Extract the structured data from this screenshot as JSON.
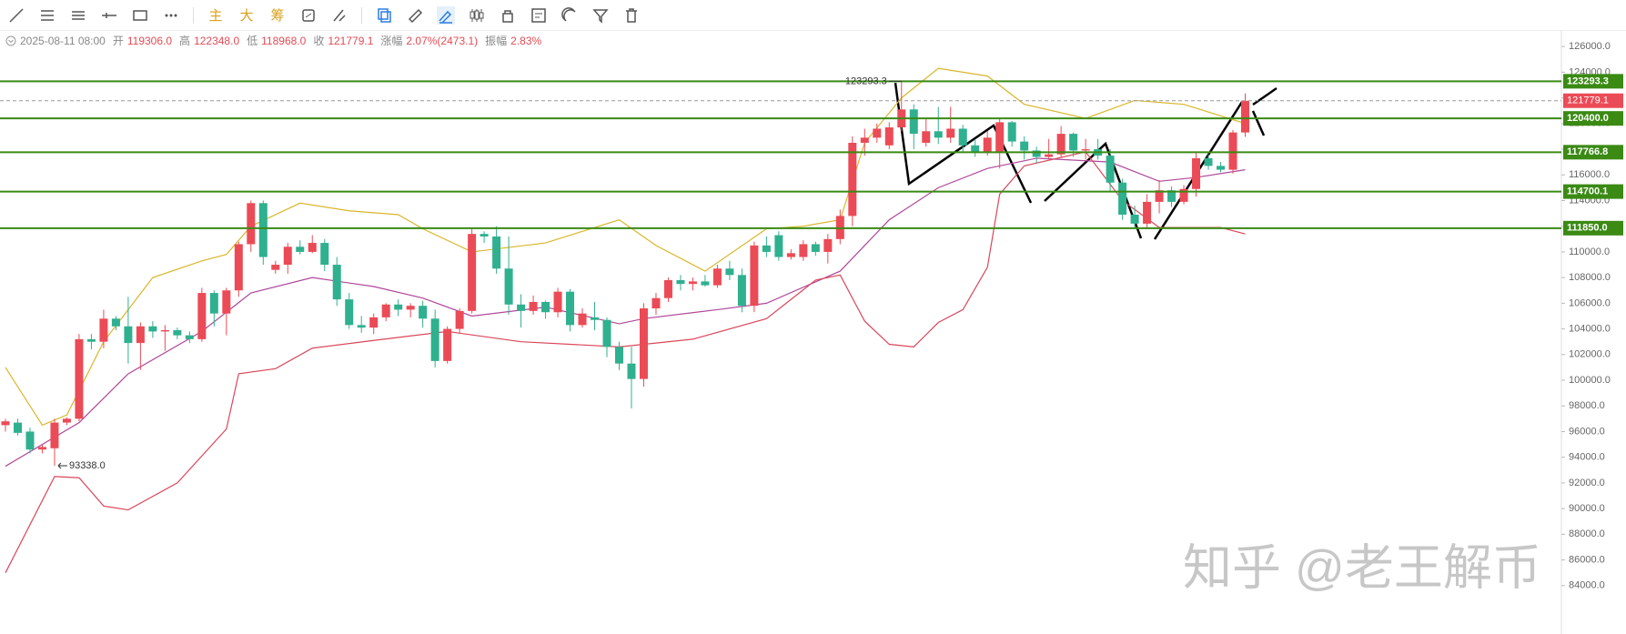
{
  "toolbar": {
    "buttons": [
      "主",
      "大",
      "筹"
    ]
  },
  "chart_data": {
    "type": "candlestick",
    "header": {
      "date": "2025-08-11 08:00",
      "items": [
        {
          "label": "开",
          "text": "119306.0"
        },
        {
          "label": "高",
          "text": "122348.0"
        },
        {
          "label": "低",
          "text": "118968.0"
        },
        {
          "label": "收",
          "text": "121779.1"
        },
        {
          "label": "涨幅",
          "text": "2.07%(2473.1)"
        },
        {
          "label": "振幅",
          "text": "2.83%"
        }
      ]
    },
    "up_color": "#eb4b56",
    "down_color": "#2fb08f",
    "ylim": [
      82000,
      127500
    ],
    "yticks": [
      {
        "value": 84000,
        "label": "84000.0"
      },
      {
        "value": 86000,
        "label": "86000.0"
      },
      {
        "value": 88000,
        "label": "88000.0"
      },
      {
        "value": 90000,
        "label": "90000.0"
      },
      {
        "value": 92000,
        "label": "92000.0"
      },
      {
        "value": 94000,
        "label": "94000.0"
      },
      {
        "value": 96000,
        "label": "96000.0"
      },
      {
        "value": 98000,
        "label": "98000.0"
      },
      {
        "value": 100000,
        "label": "100000.0"
      },
      {
        "value": 102000,
        "label": "102000.0"
      },
      {
        "value": 104000,
        "label": "104000.0"
      },
      {
        "value": 106000,
        "label": "106000.0"
      },
      {
        "value": 108000,
        "label": "108000.0"
      },
      {
        "value": 110000,
        "label": "110000.0"
      },
      {
        "value": 112000,
        "label": "112000.0"
      },
      {
        "value": 114000,
        "label": "114000.0"
      },
      {
        "value": 116000,
        "label": "116000.0"
      },
      {
        "value": 118000,
        "label": "118000.0"
      },
      {
        "value": 120000,
        "label": "120000.0"
      },
      {
        "value": 122000,
        "label": "122000.0"
      },
      {
        "value": 124000,
        "label": "124000.0"
      },
      {
        "value": 126000,
        "label": "126000.0"
      }
    ],
    "ohlc": [
      [
        96500,
        97000,
        96000,
        96800
      ],
      [
        96700,
        97000,
        95700,
        95900
      ],
      [
        96000,
        96300,
        94300,
        94600
      ],
      [
        94600,
        95000,
        94300,
        94800
      ],
      [
        94700,
        97000,
        93338,
        96700
      ],
      [
        96700,
        97100,
        96500,
        97000
      ],
      [
        97000,
        103600,
        96800,
        103200
      ],
      [
        103200,
        103600,
        102400,
        103000
      ],
      [
        103000,
        105500,
        102500,
        104800
      ],
      [
        104800,
        105000,
        103900,
        104200
      ],
      [
        104200,
        106500,
        101300,
        102900
      ],
      [
        102900,
        104500,
        100800,
        104200
      ],
      [
        104200,
        104600,
        103300,
        103800
      ],
      [
        103800,
        104300,
        102300,
        103900
      ],
      [
        103900,
        104100,
        103200,
        103500
      ],
      [
        103500,
        103800,
        102900,
        103200
      ],
      [
        103200,
        107200,
        103000,
        106800
      ],
      [
        106800,
        107000,
        104200,
        105200
      ],
      [
        105200,
        107200,
        103500,
        107000
      ],
      [
        107000,
        110800,
        106500,
        110600
      ],
      [
        110600,
        114000,
        110000,
        113800
      ],
      [
        113800,
        114000,
        109000,
        109600
      ],
      [
        108600,
        109300,
        108300,
        109000
      ],
      [
        109000,
        110700,
        108300,
        110400
      ],
      [
        110400,
        110900,
        109800,
        110000
      ],
      [
        110000,
        111300,
        109900,
        110700
      ],
      [
        110700,
        111000,
        108500,
        109000
      ],
      [
        109000,
        109600,
        105800,
        106300
      ],
      [
        106300,
        106800,
        104000,
        104300
      ],
      [
        104300,
        105000,
        103700,
        104100
      ],
      [
        104100,
        105200,
        103600,
        104900
      ],
      [
        104900,
        106000,
        104600,
        105900
      ],
      [
        105900,
        106300,
        105000,
        105500
      ],
      [
        105500,
        106000,
        104900,
        105800
      ],
      [
        105800,
        106200,
        104100,
        104800
      ],
      [
        104800,
        105500,
        101000,
        101500
      ],
      [
        101500,
        104200,
        101300,
        104000
      ],
      [
        104000,
        105600,
        103700,
        105400
      ],
      [
        105400,
        111800,
        105200,
        111400
      ],
      [
        111400,
        111600,
        110700,
        111200
      ],
      [
        111200,
        112000,
        108300,
        108700
      ],
      [
        108700,
        111200,
        105100,
        105900
      ],
      [
        105900,
        106700,
        104100,
        105400
      ],
      [
        105400,
        106600,
        105100,
        106100
      ],
      [
        106100,
        106200,
        104800,
        105300
      ],
      [
        105300,
        107200,
        104900,
        106900
      ],
      [
        106900,
        107100,
        103800,
        104300
      ],
      [
        104300,
        105600,
        104100,
        105200
      ],
      [
        104900,
        106100,
        103900,
        104700
      ],
      [
        104700,
        104900,
        101800,
        102600
      ],
      [
        102600,
        103000,
        100800,
        101300
      ],
      [
        101300,
        102600,
        97800,
        100100
      ],
      [
        100100,
        106000,
        99500,
        105600
      ],
      [
        105600,
        106800,
        105100,
        106400
      ],
      [
        106400,
        108000,
        106100,
        107800
      ],
      [
        107800,
        108200,
        107000,
        107500
      ],
      [
        107500,
        108000,
        107000,
        107700
      ],
      [
        107700,
        108200,
        107300,
        107400
      ],
      [
        107400,
        109000,
        107200,
        108700
      ],
      [
        108700,
        109300,
        107800,
        108200
      ],
      [
        108200,
        108700,
        105300,
        105800
      ],
      [
        105800,
        110800,
        105300,
        110500
      ],
      [
        110500,
        111200,
        109600,
        110000
      ],
      [
        111300,
        111600,
        109300,
        109600
      ],
      [
        109600,
        110200,
        109400,
        109900
      ],
      [
        109600,
        110900,
        109300,
        110600
      ],
      [
        110600,
        110800,
        109700,
        110000
      ],
      [
        110000,
        111400,
        109100,
        111000
      ],
      [
        111000,
        113300,
        110600,
        112800
      ],
      [
        112800,
        119000,
        112000,
        118500
      ],
      [
        118500,
        119600,
        117500,
        118900
      ],
      [
        118900,
        120000,
        118500,
        119600
      ],
      [
        118300,
        120100,
        118000,
        119700
      ],
      [
        119700,
        123293.3,
        119400,
        121100
      ],
      [
        121100,
        121500,
        118000,
        119200
      ],
      [
        118500,
        120400,
        118200,
        119400
      ],
      [
        119400,
        121300,
        118400,
        118900
      ],
      [
        118900,
        121300,
        118500,
        119600
      ],
      [
        119600,
        119900,
        117800,
        118300
      ],
      [
        118300,
        118800,
        117400,
        117800
      ],
      [
        117800,
        119400,
        117500,
        118900
      ],
      [
        117700,
        120400,
        116500,
        120100
      ],
      [
        120100,
        120200,
        118200,
        118600
      ],
      [
        118600,
        119000,
        117200,
        117900
      ],
      [
        117900,
        118200,
        116900,
        117400
      ],
      [
        117400,
        118800,
        117300,
        117600
      ],
      [
        117600,
        119800,
        117400,
        119200
      ],
      [
        119200,
        119300,
        117400,
        117900
      ],
      [
        117900,
        118800,
        117200,
        118000
      ],
      [
        118000,
        118800,
        117200,
        117500
      ],
      [
        117500,
        118000,
        114700,
        115400
      ],
      [
        115400,
        115700,
        112500,
        112900
      ],
      [
        112900,
        113600,
        111850,
        112200
      ],
      [
        112200,
        114500,
        111900,
        113900
      ],
      [
        113900,
        115600,
        113000,
        114800
      ],
      [
        114800,
        115100,
        113500,
        113900
      ],
      [
        113900,
        115200,
        113700,
        114900
      ],
      [
        114900,
        117700,
        114300,
        117300
      ],
      [
        117300,
        117600,
        116400,
        116700
      ],
      [
        116700,
        117000,
        116200,
        116400
      ],
      [
        116400,
        119500,
        116100,
        119306
      ],
      [
        119306,
        122348,
        118968,
        121779.1
      ]
    ],
    "overlays": [
      {
        "color": "#d9b62b",
        "x": [
          0,
          3,
          5,
          8,
          12,
          16,
          18,
          20,
          24,
          28,
          32,
          34,
          38,
          44,
          50,
          53,
          57,
          62,
          65,
          68,
          70,
          73,
          76,
          80,
          83,
          88,
          92,
          96,
          101
        ],
        "values": [
          101000,
          96500,
          97300,
          103000,
          108000,
          109300,
          109800,
          112000,
          113800,
          113200,
          112900,
          111800,
          110000,
          110700,
          112500,
          110500,
          108500,
          111800,
          112000,
          112500,
          118500,
          122000,
          124300,
          123700,
          121500,
          120400,
          121800,
          121500,
          120000
        ]
      },
      {
        "color": "#b0479a",
        "x": [
          0,
          6,
          10,
          16,
          20,
          25,
          30,
          34,
          38,
          44,
          50,
          52,
          58,
          62,
          68,
          72,
          76,
          80,
          84,
          90,
          94,
          97,
          101
        ],
        "values": [
          93300,
          96700,
          100500,
          103800,
          106800,
          108000,
          107300,
          106400,
          105000,
          105700,
          104400,
          104800,
          105500,
          106000,
          108500,
          112500,
          115000,
          116500,
          117300,
          117000,
          115500,
          115800,
          116400
        ]
      },
      {
        "color": "#d9475a",
        "x": [
          0,
          4,
          6,
          8,
          10,
          14,
          18,
          19,
          22,
          25,
          30,
          36,
          42,
          50,
          56,
          62,
          66,
          68,
          70,
          72,
          74,
          76,
          78,
          80,
          81,
          83,
          88,
          91,
          94,
          99,
          101
        ],
        "values": [
          85000,
          92500,
          92400,
          90200,
          89900,
          92000,
          96200,
          100500,
          100900,
          102500,
          103100,
          103800,
          103000,
          102600,
          103200,
          104800,
          107800,
          108200,
          104600,
          102800,
          102600,
          104500,
          105500,
          108800,
          114500,
          116700,
          117800,
          114000,
          111900,
          111900,
          111400
        ]
      }
    ],
    "levels": [
      {
        "value": 123293.3,
        "label": "123293.3"
      },
      {
        "value": 120400.0,
        "label": "120400.0"
      },
      {
        "value": 117766.8,
        "label": "117766.8"
      },
      {
        "value": 114700.1,
        "label": "114700.1"
      },
      {
        "value": 111850.0,
        "label": "111850.0"
      }
    ],
    "level_color": "#3a8a14",
    "last_price": {
      "value": 121779.1,
      "label": "121779.1"
    },
    "high_note": {
      "index": 73,
      "value": 123293.3,
      "label": "123293.3"
    },
    "low_note": {
      "index": 4,
      "value": 93338,
      "label": "93338.0"
    },
    "watermark": "知乎 @老王解币"
  }
}
